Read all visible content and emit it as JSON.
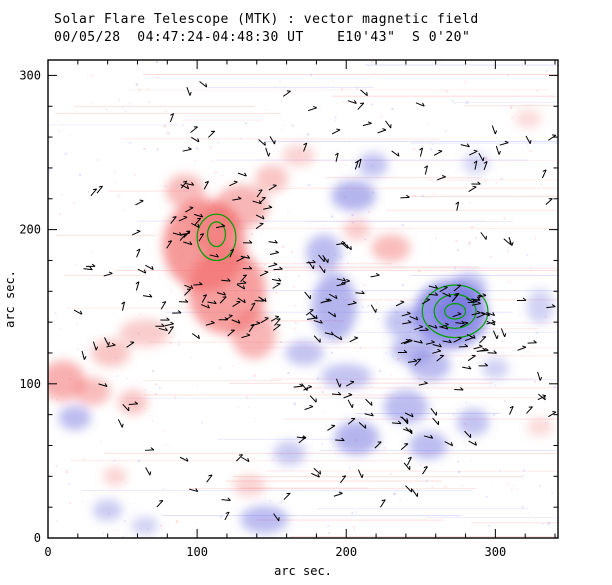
{
  "header": {
    "title_line1": "Solar Flare Telescope (MTK) : vector magnetic field",
    "title_line2": "00/05/28  04:47:24-04:48:30 UT    E10'43\"  S 0'20\""
  },
  "axes": {
    "xlabel": "arc sec.",
    "ylabel": "arc sec.",
    "x_ticks": [
      0,
      100,
      200,
      300
    ],
    "y_ticks": [
      0,
      100,
      200,
      300
    ],
    "minor_step": 20,
    "x_max": 342,
    "y_max": 310
  },
  "chart_data": {
    "type": "heatmap",
    "title": "Solar Flare Telescope (MTK) : vector magnetic field",
    "subtitle": "00/05/28 04:47:24-04:48:30 UT  E10'43\"  S 0'20\"",
    "xlabel": "arc sec.",
    "ylabel": "arc sec.",
    "x_range": [
      0,
      342
    ],
    "y_range": [
      0,
      310
    ],
    "legend": "red = positive magnetic polarity, blue = negative magnetic polarity, green = contour levels, black segments = transverse field vectors",
    "positive_color": "#f26d6d",
    "negative_color": "#6b6bde",
    "contour_color": "#00a000",
    "vector_color": "#000000",
    "blobs": [
      {
        "x": 105,
        "y": 190,
        "rx": 28,
        "ry": 30,
        "pol": "pos",
        "o": 0.7
      },
      {
        "x": 120,
        "y": 160,
        "rx": 26,
        "ry": 28,
        "pol": "pos",
        "o": 0.65
      },
      {
        "x": 112,
        "y": 200,
        "rx": 14,
        "ry": 16,
        "pol": "pos",
        "o": 0.5
      },
      {
        "x": 130,
        "y": 215,
        "rx": 18,
        "ry": 14,
        "pol": "pos",
        "o": 0.5
      },
      {
        "x": 138,
        "y": 132,
        "rx": 15,
        "ry": 16,
        "pol": "pos",
        "o": 0.5
      },
      {
        "x": 92,
        "y": 225,
        "rx": 13,
        "ry": 11,
        "pol": "pos",
        "o": 0.45
      },
      {
        "x": 65,
        "y": 133,
        "rx": 17,
        "ry": 9,
        "pol": "pos",
        "o": 0.35
      },
      {
        "x": 42,
        "y": 120,
        "rx": 13,
        "ry": 9,
        "pol": "pos",
        "o": 0.4
      },
      {
        "x": 30,
        "y": 95,
        "rx": 12,
        "ry": 9,
        "pol": "pos",
        "o": 0.45
      },
      {
        "x": 57,
        "y": 88,
        "rx": 10,
        "ry": 8,
        "pol": "pos",
        "o": 0.4
      },
      {
        "x": 10,
        "y": 102,
        "rx": 15,
        "ry": 13,
        "pol": "pos",
        "o": 0.55
      },
      {
        "x": 150,
        "y": 233,
        "rx": 11,
        "ry": 9,
        "pol": "pos",
        "o": 0.4
      },
      {
        "x": 168,
        "y": 248,
        "rx": 11,
        "ry": 7,
        "pol": "pos",
        "o": 0.3
      },
      {
        "x": 230,
        "y": 188,
        "rx": 13,
        "ry": 9,
        "pol": "pos",
        "o": 0.45
      },
      {
        "x": 207,
        "y": 200,
        "rx": 9,
        "ry": 7,
        "pol": "pos",
        "o": 0.35
      },
      {
        "x": 135,
        "y": 34,
        "rx": 11,
        "ry": 7,
        "pol": "pos",
        "o": 0.3
      },
      {
        "x": 45,
        "y": 40,
        "rx": 8,
        "ry": 6,
        "pol": "pos",
        "o": 0.3
      },
      {
        "x": 330,
        "y": 72,
        "rx": 9,
        "ry": 6,
        "pol": "pos",
        "o": 0.25
      },
      {
        "x": 322,
        "y": 272,
        "rx": 9,
        "ry": 6,
        "pol": "pos",
        "o": 0.25
      },
      {
        "x": 270,
        "y": 145,
        "rx": 25,
        "ry": 22,
        "pol": "neg",
        "o": 0.7
      },
      {
        "x": 272,
        "y": 146,
        "rx": 13,
        "ry": 11,
        "pol": "neg",
        "o": 0.55
      },
      {
        "x": 282,
        "y": 162,
        "rx": 12,
        "ry": 10,
        "pol": "neg",
        "o": 0.45
      },
      {
        "x": 256,
        "y": 112,
        "rx": 14,
        "ry": 10,
        "pol": "neg",
        "o": 0.45
      },
      {
        "x": 238,
        "y": 140,
        "rx": 12,
        "ry": 10,
        "pol": "neg",
        "o": 0.4
      },
      {
        "x": 244,
        "y": 122,
        "rx": 14,
        "ry": 9,
        "pol": "neg",
        "o": 0.45
      },
      {
        "x": 192,
        "y": 150,
        "rx": 15,
        "ry": 22,
        "pol": "neg",
        "o": 0.5
      },
      {
        "x": 185,
        "y": 185,
        "rx": 12,
        "ry": 12,
        "pol": "neg",
        "o": 0.45
      },
      {
        "x": 205,
        "y": 222,
        "rx": 15,
        "ry": 10,
        "pol": "neg",
        "o": 0.5
      },
      {
        "x": 218,
        "y": 242,
        "rx": 10,
        "ry": 8,
        "pol": "neg",
        "o": 0.4
      },
      {
        "x": 172,
        "y": 120,
        "rx": 13,
        "ry": 8,
        "pol": "neg",
        "o": 0.4
      },
      {
        "x": 200,
        "y": 105,
        "rx": 17,
        "ry": 8,
        "pol": "neg",
        "o": 0.4
      },
      {
        "x": 240,
        "y": 85,
        "rx": 15,
        "ry": 11,
        "pol": "neg",
        "o": 0.45
      },
      {
        "x": 207,
        "y": 65,
        "rx": 15,
        "ry": 11,
        "pol": "neg",
        "o": 0.5
      },
      {
        "x": 255,
        "y": 60,
        "rx": 13,
        "ry": 9,
        "pol": "neg",
        "o": 0.45
      },
      {
        "x": 285,
        "y": 75,
        "rx": 11,
        "ry": 9,
        "pol": "neg",
        "o": 0.4
      },
      {
        "x": 162,
        "y": 55,
        "rx": 11,
        "ry": 8,
        "pol": "neg",
        "o": 0.35
      },
      {
        "x": 145,
        "y": 12,
        "rx": 16,
        "ry": 9,
        "pol": "neg",
        "o": 0.45
      },
      {
        "x": 40,
        "y": 18,
        "rx": 10,
        "ry": 7,
        "pol": "neg",
        "o": 0.35
      },
      {
        "x": 18,
        "y": 78,
        "rx": 11,
        "ry": 8,
        "pol": "neg",
        "o": 0.45
      },
      {
        "x": 330,
        "y": 150,
        "rx": 9,
        "ry": 11,
        "pol": "neg",
        "o": 0.3
      },
      {
        "x": 287,
        "y": 243,
        "rx": 9,
        "ry": 7,
        "pol": "neg",
        "o": 0.28
      },
      {
        "x": 300,
        "y": 110,
        "rx": 9,
        "ry": 7,
        "pol": "neg",
        "o": 0.3
      },
      {
        "x": 65,
        "y": 8,
        "rx": 9,
        "ry": 6,
        "pol": "neg",
        "o": 0.3
      }
    ],
    "contours": [
      {
        "x": 273,
        "y": 147,
        "rx": 22,
        "ry": 17
      },
      {
        "x": 273,
        "y": 147,
        "rx": 14,
        "ry": 11
      },
      {
        "x": 273,
        "y": 147,
        "rx": 7,
        "ry": 5
      },
      {
        "x": 113,
        "y": 195,
        "rx": 13,
        "ry": 15
      },
      {
        "x": 113,
        "y": 197,
        "rx": 6,
        "ry": 8
      }
    ],
    "vector_clusters": [
      {
        "cx": 115,
        "cy": 180,
        "sx": 40,
        "sy": 50,
        "count": 75,
        "angle": -15,
        "spread": 50
      },
      {
        "cx": 268,
        "cy": 138,
        "sx": 32,
        "sy": 28,
        "count": 55,
        "angle": -10,
        "spread": 40
      },
      {
        "cx": 195,
        "cy": 160,
        "sx": 25,
        "sy": 35,
        "count": 28,
        "angle": 0,
        "spread": 60
      },
      {
        "cx": 225,
        "cy": 80,
        "sx": 60,
        "sy": 22,
        "count": 32,
        "angle": 10,
        "spread": 60
      },
      {
        "cx": 170,
        "cy": 255,
        "sx": 90,
        "sy": 40,
        "count": 30,
        "angle": 0,
        "spread": 80
      },
      {
        "cx": 60,
        "cy": 150,
        "sx": 45,
        "sy": 80,
        "count": 25,
        "angle": 0,
        "spread": 80
      },
      {
        "cx": 300,
        "cy": 220,
        "sx": 40,
        "sy": 50,
        "count": 20,
        "angle": 0,
        "spread": 80
      },
      {
        "cx": 160,
        "cy": 40,
        "sx": 100,
        "sy": 30,
        "count": 25,
        "angle": 0,
        "spread": 80
      },
      {
        "cx": 320,
        "cy": 120,
        "sx": 22,
        "sy": 40,
        "count": 12,
        "angle": 0,
        "spread": 80
      }
    ],
    "noise": {
      "streaks": 70,
      "speckles": 420,
      "seed": 42,
      "streak_pink": "#ffc0c0",
      "streak_blue": "#c4c4ff",
      "speck_pink": "#ffb0b0",
      "speck_blue": "#b0b0ff"
    }
  }
}
